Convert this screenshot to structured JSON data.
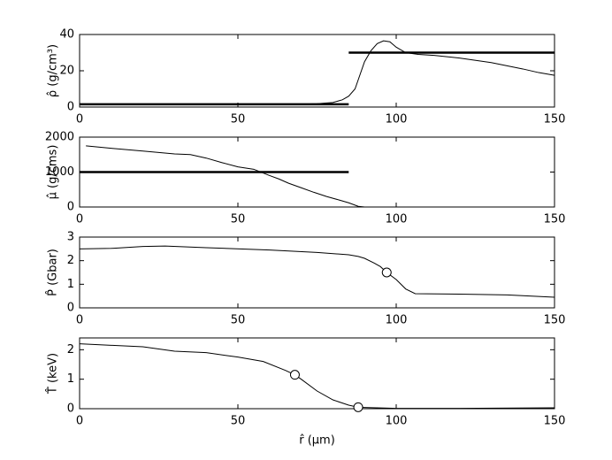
{
  "chart_data": [
    {
      "type": "line",
      "ylabel": "ρ̂ (g/cm³)",
      "xlim": [
        0,
        150
      ],
      "ylim": [
        0,
        40
      ],
      "xticks": [
        0,
        50,
        100,
        150
      ],
      "yticks": [
        0,
        20,
        40
      ],
      "series": [
        {
          "color": "#000000",
          "line_width": 1,
          "x": [
            0,
            20,
            40,
            60,
            70,
            75,
            80,
            83,
            85,
            87,
            88,
            90,
            92,
            94,
            96,
            98,
            100,
            103,
            107,
            112,
            120,
            130,
            140,
            145,
            150
          ],
          "values": [
            1.5,
            1.5,
            1.5,
            1.5,
            1.6,
            1.8,
            2.5,
            4,
            6,
            10,
            15,
            25,
            31,
            35,
            36.5,
            36,
            33,
            30,
            29,
            28.5,
            27,
            24.5,
            21,
            19,
            17.5
          ]
        },
        {
          "color": "#000000",
          "line_width": 2.5,
          "x": [
            0,
            85
          ],
          "values": [
            1.5,
            1.5
          ]
        },
        {
          "color": "#000000",
          "line_width": 2.5,
          "x": [
            85,
            150
          ],
          "values": [
            30,
            30
          ]
        }
      ]
    },
    {
      "type": "line",
      "ylabel": "μ̂ (g/cms)",
      "xlim": [
        0,
        150
      ],
      "ylim": [
        0,
        2000
      ],
      "xticks": [
        0,
        50,
        100,
        150
      ],
      "yticks": [
        0,
        1000,
        2000
      ],
      "series": [
        {
          "color": "#000000",
          "line_width": 1,
          "x": [
            2,
            10,
            20,
            30,
            35,
            40,
            45,
            50,
            55,
            60,
            63,
            66,
            70,
            74,
            78,
            82,
            85,
            88,
            90,
            100,
            150
          ],
          "values": [
            1750,
            1680,
            1600,
            1520,
            1500,
            1400,
            1270,
            1150,
            1080,
            900,
            800,
            680,
            550,
            420,
            300,
            200,
            120,
            20,
            0,
            0,
            0
          ]
        },
        {
          "color": "#000000",
          "line_width": 2.5,
          "x": [
            0,
            85
          ],
          "values": [
            1000,
            1000
          ]
        }
      ]
    },
    {
      "type": "line",
      "ylabel": "P̂ (Gbar)",
      "xlim": [
        0,
        150
      ],
      "ylim": [
        0,
        3
      ],
      "xticks": [
        0,
        50,
        100,
        150
      ],
      "yticks": [
        0,
        1,
        2,
        3
      ],
      "series": [
        {
          "color": "#000000",
          "line_width": 1,
          "x": [
            0,
            10,
            20,
            27,
            40,
            60,
            75,
            85,
            88,
            90,
            93,
            95,
            97,
            100,
            103,
            106,
            120,
            135,
            150
          ],
          "values": [
            2.5,
            2.52,
            2.6,
            2.62,
            2.55,
            2.45,
            2.35,
            2.25,
            2.18,
            2.1,
            1.9,
            1.75,
            1.5,
            1.2,
            0.8,
            0.6,
            0.58,
            0.55,
            0.45
          ]
        },
        {
          "color": "#000000",
          "style": "marker",
          "x": [
            97
          ],
          "values": [
            1.5
          ]
        }
      ]
    },
    {
      "type": "line",
      "ylabel": "T̂ (keV)",
      "xlabel": "r̂ (μm)",
      "xlim": [
        0,
        150
      ],
      "ylim": [
        0,
        2.4
      ],
      "xticks": [
        0,
        50,
        100,
        150
      ],
      "yticks": [
        0,
        1,
        2
      ],
      "series": [
        {
          "color": "#000000",
          "line_width": 1,
          "x": [
            0,
            10,
            20,
            30,
            40,
            50,
            58,
            65,
            68,
            70,
            75,
            80,
            85,
            88,
            90,
            100,
            120,
            150
          ],
          "values": [
            2.2,
            2.15,
            2.1,
            1.95,
            1.9,
            1.75,
            1.6,
            1.3,
            1.15,
            1.0,
            0.6,
            0.3,
            0.12,
            0.05,
            0.04,
            0.01,
            0.01,
            0.03
          ]
        },
        {
          "color": "#000000",
          "style": "marker",
          "x": [
            68,
            88
          ],
          "values": [
            1.15,
            0.05
          ]
        }
      ]
    }
  ]
}
